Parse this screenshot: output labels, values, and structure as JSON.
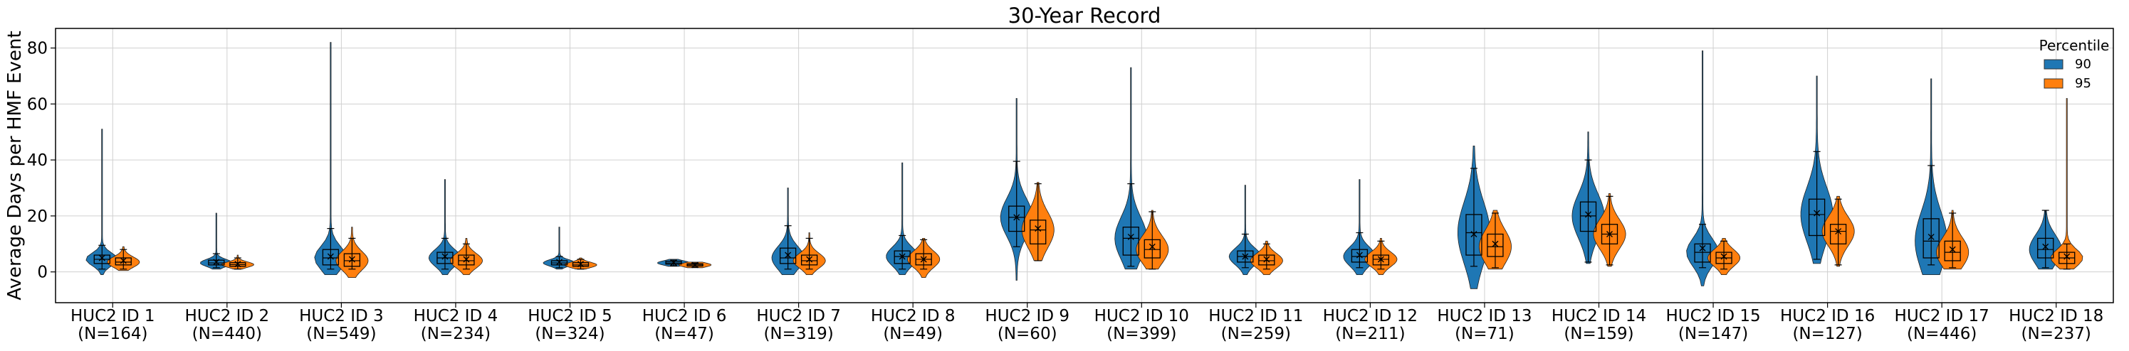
{
  "chart_data": {
    "type": "violin-box",
    "title": "30-Year Record",
    "xlabel": "",
    "ylabel": "Average Days per HMF Event",
    "ylim": [
      -11,
      87
    ],
    "yticks": [
      0,
      20,
      40,
      60,
      80
    ],
    "grid": true,
    "legend": {
      "title": "Percentile",
      "placement": "top-right"
    },
    "categories": [
      {
        "id": "HUC2 ID 1",
        "n": "(N=164)"
      },
      {
        "id": "HUC2 ID 2",
        "n": "(N=440)"
      },
      {
        "id": "HUC2 ID 3",
        "n": "(N=549)"
      },
      {
        "id": "HUC2 ID 4",
        "n": "(N=234)"
      },
      {
        "id": "HUC2 ID 5",
        "n": "(N=324)"
      },
      {
        "id": "HUC2 ID 6",
        "n": "(N=47)"
      },
      {
        "id": "HUC2 ID 7",
        "n": "(N=319)"
      },
      {
        "id": "HUC2 ID 8",
        "n": "(N=49)"
      },
      {
        "id": "HUC2 ID 9",
        "n": "(N=60)"
      },
      {
        "id": "HUC2 ID 10",
        "n": "(N=399)"
      },
      {
        "id": "HUC2 ID 11",
        "n": "(N=259)"
      },
      {
        "id": "HUC2 ID 12",
        "n": "(N=211)"
      },
      {
        "id": "HUC2 ID 13",
        "n": "(N=71)"
      },
      {
        "id": "HUC2 ID 14",
        "n": "(N=159)"
      },
      {
        "id": "HUC2 ID 15",
        "n": "(N=147)"
      },
      {
        "id": "HUC2 ID 16",
        "n": "(N=127)"
      },
      {
        "id": "HUC2 ID 17",
        "n": "(N=446)"
      },
      {
        "id": "HUC2 ID 18",
        "n": "(N=237)"
      }
    ],
    "series": [
      {
        "name": "90",
        "color": "#1f77b4",
        "stats": [
          {
            "min": 1,
            "q1": 3,
            "median": 4.5,
            "q3": 6,
            "max": 9.5,
            "mean": 5,
            "vmin": -1,
            "vmax": 51
          },
          {
            "min": 1.5,
            "q1": 2.5,
            "median": 3.2,
            "q3": 4.2,
            "max": 6.5,
            "mean": 3.5,
            "vmin": 1,
            "vmax": 21
          },
          {
            "min": 1,
            "q1": 2.5,
            "median": 5,
            "q3": 8,
            "max": 15.5,
            "mean": 5.5,
            "vmin": -1,
            "vmax": 82
          },
          {
            "min": 1,
            "q1": 3,
            "median": 5,
            "q3": 7,
            "max": 12,
            "mean": 5.5,
            "vmin": -1,
            "vmax": 33
          },
          {
            "min": 1.5,
            "q1": 2.5,
            "median": 3.2,
            "q3": 4,
            "max": 5.5,
            "mean": 3.5,
            "vmin": 1,
            "vmax": 16
          },
          {
            "min": 2.2,
            "q1": 2.8,
            "median": 3.2,
            "q3": 3.8,
            "max": 4.2,
            "mean": 3.3,
            "vmin": 2,
            "vmax": 4.5
          },
          {
            "min": 1,
            "q1": 3,
            "median": 5,
            "q3": 8.5,
            "max": 16.5,
            "mean": 6,
            "vmin": -1,
            "vmax": 30
          },
          {
            "min": 1,
            "q1": 3,
            "median": 5.5,
            "q3": 7.5,
            "max": 13,
            "mean": 5.5,
            "vmin": -1,
            "vmax": 39
          },
          {
            "min": 9,
            "q1": 14.5,
            "median": 19.5,
            "q3": 23.5,
            "max": 39.5,
            "mean": 19.5,
            "vmin": -3,
            "vmax": 62
          },
          {
            "min": 2,
            "q1": 6,
            "median": 12,
            "q3": 16,
            "max": 31.5,
            "mean": 12.5,
            "vmin": 1,
            "vmax": 73
          },
          {
            "min": 1.5,
            "q1": 3.5,
            "median": 5.5,
            "q3": 7.5,
            "max": 13.5,
            "mean": 5.5,
            "vmin": -1,
            "vmax": 31
          },
          {
            "min": 1.5,
            "q1": 3.5,
            "median": 5.5,
            "q3": 8,
            "max": 14,
            "mean": 6,
            "vmin": -1,
            "vmax": 33
          },
          {
            "min": 2,
            "q1": 6,
            "median": 14,
            "q3": 20.5,
            "max": 37,
            "mean": 13.5,
            "vmin": -6,
            "vmax": 45
          },
          {
            "min": 3.5,
            "q1": 14.5,
            "median": 20,
            "q3": 25,
            "max": 40,
            "mean": 20.5,
            "vmin": 3,
            "vmax": 50
          },
          {
            "min": 1.5,
            "q1": 3.5,
            "median": 7,
            "q3": 10,
            "max": 17,
            "mean": 8.5,
            "vmin": -5,
            "vmax": 79
          },
          {
            "min": 4.5,
            "q1": 13,
            "median": 20.5,
            "q3": 26,
            "max": 43,
            "mean": 21,
            "vmin": 3,
            "vmax": 70
          },
          {
            "min": 2.5,
            "q1": 5,
            "median": 11,
            "q3": 19,
            "max": 38,
            "mean": 12.5,
            "vmin": -1,
            "vmax": 69
          },
          {
            "min": 1.5,
            "q1": 5,
            "median": 8,
            "q3": 12,
            "max": 22,
            "mean": 9,
            "vmin": 1,
            "vmax": 22
          }
        ]
      },
      {
        "name": "95",
        "color": "#ff7f0e",
        "stats": [
          {
            "min": 1,
            "q1": 2.5,
            "median": 3.5,
            "q3": 5,
            "max": 8,
            "mean": 4,
            "vmin": 0.5,
            "vmax": 9
          },
          {
            "min": 1,
            "q1": 2,
            "median": 2.6,
            "q3": 3.3,
            "max": 5,
            "mean": 2.8,
            "vmin": 1,
            "vmax": 6
          },
          {
            "min": 1,
            "q1": 2,
            "median": 4,
            "q3": 6.5,
            "max": 12,
            "mean": 4.5,
            "vmin": -2,
            "vmax": 16
          },
          {
            "min": 1,
            "q1": 2.5,
            "median": 4,
            "q3": 6,
            "max": 10,
            "mean": 4.5,
            "vmin": -1,
            "vmax": 12
          },
          {
            "min": 1,
            "q1": 2,
            "median": 2.5,
            "q3": 3.3,
            "max": 4.5,
            "mean": 2.8,
            "vmin": 1,
            "vmax": 5
          },
          {
            "min": 1.6,
            "q1": 2.1,
            "median": 2.5,
            "q3": 2.9,
            "max": 3.2,
            "mean": 2.5,
            "vmin": 1.5,
            "vmax": 3.5
          },
          {
            "min": 1,
            "q1": 2.5,
            "median": 4,
            "q3": 6,
            "max": 12,
            "mean": 4.5,
            "vmin": -1,
            "vmax": 14
          },
          {
            "min": 1,
            "q1": 2.5,
            "median": 4.5,
            "q3": 6.5,
            "max": 11.5,
            "mean": 4.5,
            "vmin": -2,
            "vmax": 12
          },
          {
            "min": 4,
            "q1": 10,
            "median": 15,
            "q3": 18.5,
            "max": 31.5,
            "mean": 15.5,
            "vmin": 4,
            "vmax": 32
          },
          {
            "min": 1,
            "q1": 5,
            "median": 8,
            "q3": 11.5,
            "max": 21.5,
            "mean": 9,
            "vmin": 1,
            "vmax": 22
          },
          {
            "min": 1,
            "q1": 2.5,
            "median": 4,
            "q3": 6,
            "max": 10,
            "mean": 4.5,
            "vmin": -1,
            "vmax": 11
          },
          {
            "min": 1,
            "q1": 2.5,
            "median": 4.5,
            "q3": 6,
            "max": 11,
            "mean": 4.5,
            "vmin": -1,
            "vmax": 12
          },
          {
            "min": 1.5,
            "q1": 5.5,
            "median": 9,
            "q3": 13.5,
            "max": 21,
            "mean": 10,
            "vmin": 1,
            "vmax": 22
          },
          {
            "min": 2.5,
            "q1": 10,
            "median": 13.5,
            "q3": 17,
            "max": 27,
            "mean": 13.5,
            "vmin": 2,
            "vmax": 28
          },
          {
            "min": 1,
            "q1": 3,
            "median": 5,
            "q3": 7,
            "max": 11,
            "mean": 5.5,
            "vmin": -1,
            "vmax": 12
          },
          {
            "min": 2.5,
            "q1": 10,
            "median": 14.5,
            "q3": 17,
            "max": 26,
            "mean": 14.5,
            "vmin": 2,
            "vmax": 27
          },
          {
            "min": 1.5,
            "q1": 4,
            "median": 7,
            "q3": 11,
            "max": 21,
            "mean": 8,
            "vmin": 1,
            "vmax": 22
          },
          {
            "min": 1,
            "q1": 3,
            "median": 5,
            "q3": 7,
            "max": 10,
            "mean": 5.5,
            "vmin": 1,
            "vmax": 62
          }
        ]
      }
    ]
  }
}
